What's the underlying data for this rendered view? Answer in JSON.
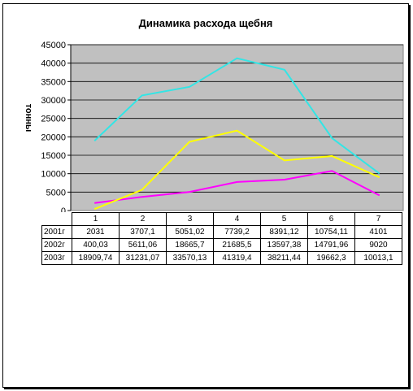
{
  "chart_data": {
    "type": "line",
    "title": "Динамика расхода щебня",
    "ylabel": "тонны",
    "categories": [
      "1",
      "2",
      "3",
      "4",
      "5",
      "6",
      "7"
    ],
    "ylim": [
      0,
      45000
    ],
    "yticks": [
      "0",
      "5000",
      "10000",
      "15000",
      "20000",
      "25000",
      "30000",
      "35000",
      "40000",
      "45000"
    ],
    "grid": true,
    "plot_background": "#c0c0c0",
    "series": [
      {
        "name": "2001г",
        "color": "#ff00ff",
        "values": [
          2031,
          3707.1,
          5051.02,
          7739.2,
          8391.12,
          10754.11,
          4101
        ],
        "labels": [
          "2031",
          "3707,1",
          "5051,02",
          "7739,2",
          "8391,12",
          "10754,11",
          "4101"
        ]
      },
      {
        "name": "2002г",
        "color": "#ffff00",
        "values": [
          400.03,
          5611.06,
          18665.7,
          21685.5,
          13597.38,
          14791.96,
          9020
        ],
        "labels": [
          "400,03",
          "5611,06",
          "18665,7",
          "21685,5",
          "13597,38",
          "14791,96",
          "9020"
        ]
      },
      {
        "name": "2003г",
        "color": "#33e5e5",
        "values": [
          18909.74,
          31231.07,
          33570.13,
          41319.4,
          38211.44,
          19662.3,
          10013.1
        ],
        "labels": [
          "18909,74",
          "31231,07",
          "33570,13",
          "41319,4",
          "38211,44",
          "19662,3",
          "10013,1"
        ]
      }
    ]
  }
}
